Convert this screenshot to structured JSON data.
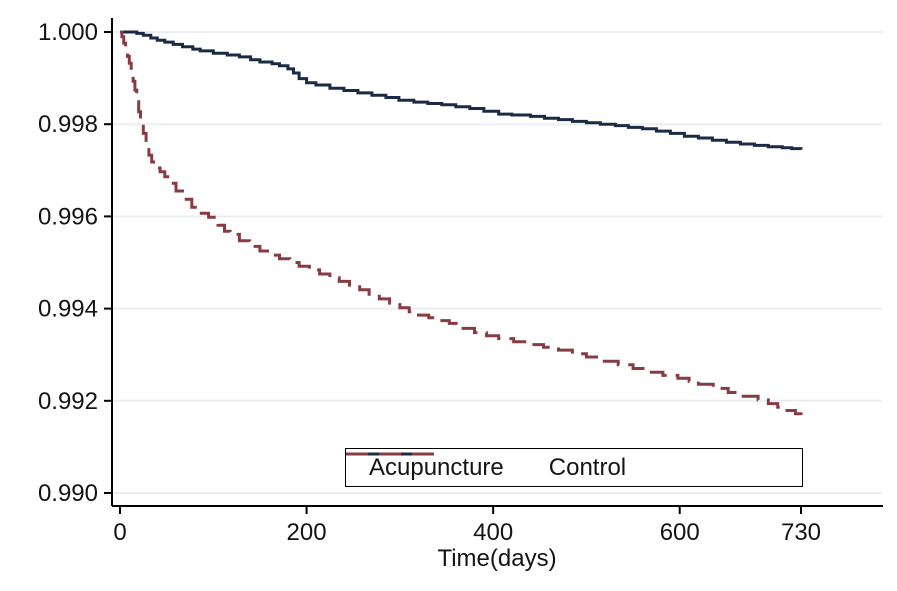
{
  "chart_data": {
    "type": "line",
    "subtype": "kaplan-meier-step",
    "xlabel": "Time(days)",
    "ylabel": "",
    "xlim": [
      0,
      815
    ],
    "ylim": [
      0.99,
      1.0
    ],
    "grid": "horizontal",
    "legend_position": "inside-bottom",
    "background_color": "#ffffff",
    "gridline_color": "#eaeef0",
    "axis_color": "#000000",
    "text_color": "#141414",
    "x_ticks": [
      {
        "value": 0,
        "label": "0"
      },
      {
        "value": 200,
        "label": "200"
      },
      {
        "value": 400,
        "label": "400"
      },
      {
        "value": 600,
        "label": "600"
      },
      {
        "value": 730,
        "label": "730"
      }
    ],
    "y_ticks": [
      {
        "value": 0.99,
        "label": "0.990"
      },
      {
        "value": 0.992,
        "label": "0.992"
      },
      {
        "value": 0.994,
        "label": "0.994"
      },
      {
        "value": 0.996,
        "label": "0.996"
      },
      {
        "value": 0.998,
        "label": "0.998"
      },
      {
        "value": 1.0,
        "label": "1.000"
      }
    ],
    "series": [
      {
        "name": "Acupuncture",
        "color": "#1c2b45",
        "style": "solid",
        "points": [
          [
            0,
            1.0
          ],
          [
            18,
            0.99997
          ],
          [
            25,
            0.99993
          ],
          [
            33,
            0.99987
          ],
          [
            40,
            0.99982
          ],
          [
            48,
            0.99978
          ],
          [
            57,
            0.99973
          ],
          [
            67,
            0.99968
          ],
          [
            78,
            0.99963
          ],
          [
            86,
            0.99959
          ],
          [
            100,
            0.99954
          ],
          [
            115,
            0.9995
          ],
          [
            128,
            0.99946
          ],
          [
            140,
            0.9994
          ],
          [
            150,
            0.99935
          ],
          [
            163,
            0.99931
          ],
          [
            171,
            0.99927
          ],
          [
            180,
            0.9992
          ],
          [
            186,
            0.99911
          ],
          [
            192,
            0.99899
          ],
          [
            200,
            0.9989
          ],
          [
            210,
            0.99885
          ],
          [
            225,
            0.99878
          ],
          [
            240,
            0.99873
          ],
          [
            255,
            0.99868
          ],
          [
            270,
            0.99863
          ],
          [
            285,
            0.99858
          ],
          [
            299,
            0.99852
          ],
          [
            315,
            0.99848
          ],
          [
            330,
            0.99845
          ],
          [
            345,
            0.99842
          ],
          [
            360,
            0.99838
          ],
          [
            375,
            0.99834
          ],
          [
            390,
            0.99828
          ],
          [
            406,
            0.99822
          ],
          [
            420,
            0.9982
          ],
          [
            440,
            0.99817
          ],
          [
            455,
            0.99813
          ],
          [
            470,
            0.9981
          ],
          [
            485,
            0.99806
          ],
          [
            500,
            0.99803
          ],
          [
            515,
            0.998
          ],
          [
            531,
            0.99797
          ],
          [
            545,
            0.99793
          ],
          [
            560,
            0.9979
          ],
          [
            575,
            0.99785
          ],
          [
            590,
            0.9978
          ],
          [
            605,
            0.99774
          ],
          [
            620,
            0.9977
          ],
          [
            635,
            0.99765
          ],
          [
            650,
            0.99761
          ],
          [
            665,
            0.99757
          ],
          [
            680,
            0.99754
          ],
          [
            695,
            0.99751
          ],
          [
            710,
            0.99749
          ],
          [
            720,
            0.99747
          ],
          [
            730,
            0.99745
          ]
        ]
      },
      {
        "name": "Control",
        "color": "#873c44",
        "style": "dashed",
        "points": [
          [
            0,
            1.0
          ],
          [
            2,
            0.9999
          ],
          [
            4,
            0.99976
          ],
          [
            6,
            0.99961
          ],
          [
            8,
            0.99947
          ],
          [
            10,
            0.99932
          ],
          [
            12,
            0.99912
          ],
          [
            14,
            0.99893
          ],
          [
            16,
            0.99874
          ],
          [
            18,
            0.99855
          ],
          [
            20,
            0.99827
          ],
          [
            22,
            0.998
          ],
          [
            25,
            0.9978
          ],
          [
            28,
            0.99755
          ],
          [
            31,
            0.99733
          ],
          [
            34,
            0.99718
          ],
          [
            38,
            0.99705
          ],
          [
            43,
            0.99697
          ],
          [
            48,
            0.99686
          ],
          [
            53,
            0.99672
          ],
          [
            60,
            0.99655
          ],
          [
            69,
            0.99637
          ],
          [
            77,
            0.9962
          ],
          [
            85,
            0.99607
          ],
          [
            95,
            0.99598
          ],
          [
            105,
            0.99581
          ],
          [
            112,
            0.99568
          ],
          [
            118,
            0.99561
          ],
          [
            128,
            0.99547
          ],
          [
            139,
            0.99535
          ],
          [
            150,
            0.99525
          ],
          [
            160,
            0.99516
          ],
          [
            171,
            0.99508
          ],
          [
            182,
            0.995
          ],
          [
            192,
            0.99492
          ],
          [
            203,
            0.99484
          ],
          [
            214,
            0.99475
          ],
          [
            225,
            0.99467
          ],
          [
            235,
            0.99459
          ],
          [
            246,
            0.99451
          ],
          [
            257,
            0.99441
          ],
          [
            267,
            0.99431
          ],
          [
            278,
            0.99421
          ],
          [
            289,
            0.99412
          ],
          [
            300,
            0.99402
          ],
          [
            310,
            0.99393
          ],
          [
            320,
            0.99386
          ],
          [
            331,
            0.9938
          ],
          [
            342,
            0.99374
          ],
          [
            353,
            0.99368
          ],
          [
            366,
            0.99357
          ],
          [
            380,
            0.99348
          ],
          [
            393,
            0.99341
          ],
          [
            406,
            0.99335
          ],
          [
            422,
            0.99328
          ],
          [
            438,
            0.99322
          ],
          [
            454,
            0.99316
          ],
          [
            470,
            0.9931
          ],
          [
            485,
            0.99302
          ],
          [
            500,
            0.99295
          ],
          [
            517,
            0.99286
          ],
          [
            534,
            0.99278
          ],
          [
            550,
            0.9927
          ],
          [
            566,
            0.99262
          ],
          [
            582,
            0.99255
          ],
          [
            598,
            0.99249
          ],
          [
            610,
            0.99242
          ],
          [
            620,
            0.99236
          ],
          [
            636,
            0.99227
          ],
          [
            652,
            0.99218
          ],
          [
            668,
            0.9921
          ],
          [
            684,
            0.99202
          ],
          [
            695,
            0.99194
          ],
          [
            705,
            0.99186
          ],
          [
            715,
            0.99179
          ],
          [
            724,
            0.99172
          ],
          [
            730,
            0.99168
          ]
        ]
      }
    ]
  }
}
